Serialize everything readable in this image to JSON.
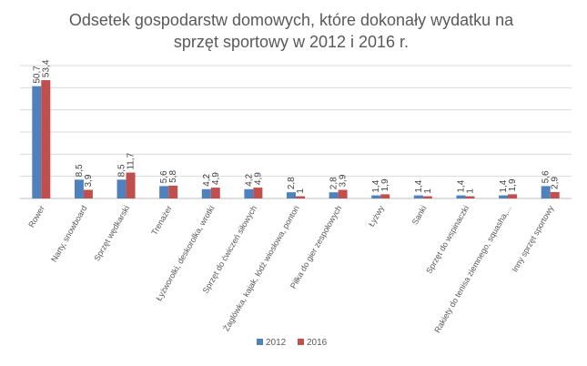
{
  "chart_data": {
    "type": "bar",
    "title_line1": "Odsetek gospodarstw domowych, które dokonały wydatku na",
    "title_line2": "sprzęt sportowy w 2012 i 2016 r.",
    "categories": [
      "Rower",
      "Narty, snowboard",
      "Sprzęt wędkarski",
      "Trenażer",
      "Łyżworolki, deskorolka, wrotki",
      "Sprzęt do ćwiczeń siłowych",
      "Żaglówka, kajak, łódź wiosłowa, ponton",
      "Piłka do gier zespołowych",
      "Łyżwy",
      "Sanki",
      "Sprzęt do wspinaczki",
      "Rakiety do tenisa ziemnego, squasha,...",
      "Inny sprzęt sportowy"
    ],
    "series": [
      {
        "name": "2012",
        "color": "#4f81bd",
        "values": [
          50.7,
          8.5,
          8.5,
          5.6,
          4.2,
          4.2,
          2.8,
          2.8,
          1.4,
          1.4,
          1.4,
          1.4,
          5.6
        ],
        "labels": [
          "50,7",
          "8,5",
          "8,5",
          "5,6",
          "4,2",
          "4,2",
          "2,8",
          "2,8",
          "1,4",
          "1,4",
          "1,4",
          "1,4",
          "5,6"
        ]
      },
      {
        "name": "2016",
        "color": "#c0504d",
        "values": [
          53.4,
          3.9,
          11.7,
          5.8,
          4.9,
          4.9,
          1.0,
          3.9,
          1.9,
          1.0,
          1.0,
          1.9,
          2.9
        ],
        "labels": [
          "53,4",
          "3,9",
          "11,7",
          "5,8",
          "4,9",
          "4,9",
          "1",
          "3,9",
          "1,9",
          "1",
          "1",
          "1,9",
          "2,9"
        ]
      }
    ],
    "ylim": [
      0,
      60
    ],
    "grid": true,
    "legend_position": "bottom"
  }
}
